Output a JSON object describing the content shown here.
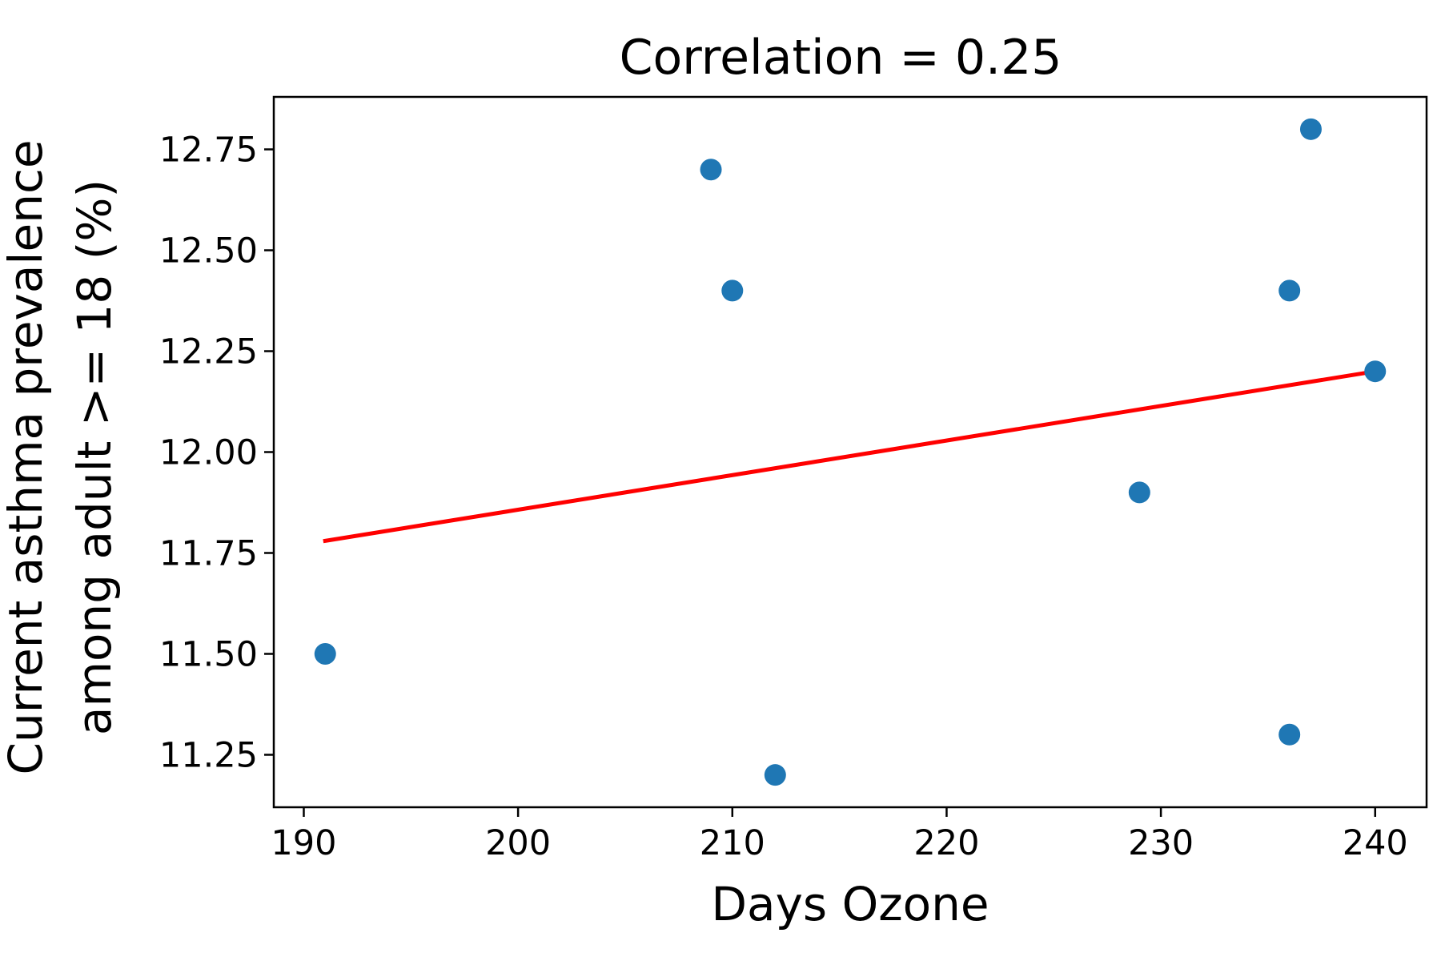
{
  "chart_data": {
    "type": "scatter",
    "title": "Correlation = 0.25",
    "xlabel": "Days Ozone",
    "ylabel_lines": [
      "Current asthma prevalence",
      "among adult >= 18 (%)"
    ],
    "xlim": [
      188.6,
      242.4
    ],
    "ylim": [
      11.12,
      12.88
    ],
    "x_ticks": [
      190,
      200,
      210,
      220,
      230,
      240
    ],
    "x_tick_labels": [
      "190",
      "200",
      "210",
      "220",
      "230",
      "240"
    ],
    "y_ticks": [
      11.25,
      11.5,
      11.75,
      12.0,
      12.25,
      12.5,
      12.75
    ],
    "y_tick_labels": [
      "11.25",
      "11.50",
      "11.75",
      "12.00",
      "12.25",
      "12.50",
      "12.75"
    ],
    "series": [
      {
        "points": [
          {
            "x": 191,
            "y": 11.5
          },
          {
            "x": 209,
            "y": 12.7
          },
          {
            "x": 210,
            "y": 12.4
          },
          {
            "x": 212,
            "y": 11.2
          },
          {
            "x": 229,
            "y": 11.9
          },
          {
            "x": 236,
            "y": 12.4
          },
          {
            "x": 236,
            "y": 11.3
          },
          {
            "x": 237,
            "y": 12.8
          },
          {
            "x": 240,
            "y": 12.2
          }
        ],
        "color": "#1f77b4"
      }
    ],
    "trendline": {
      "x": [
        191,
        240
      ],
      "y": [
        11.78,
        12.2
      ],
      "color": "#ff0000"
    },
    "grid": false,
    "legend": "none"
  }
}
